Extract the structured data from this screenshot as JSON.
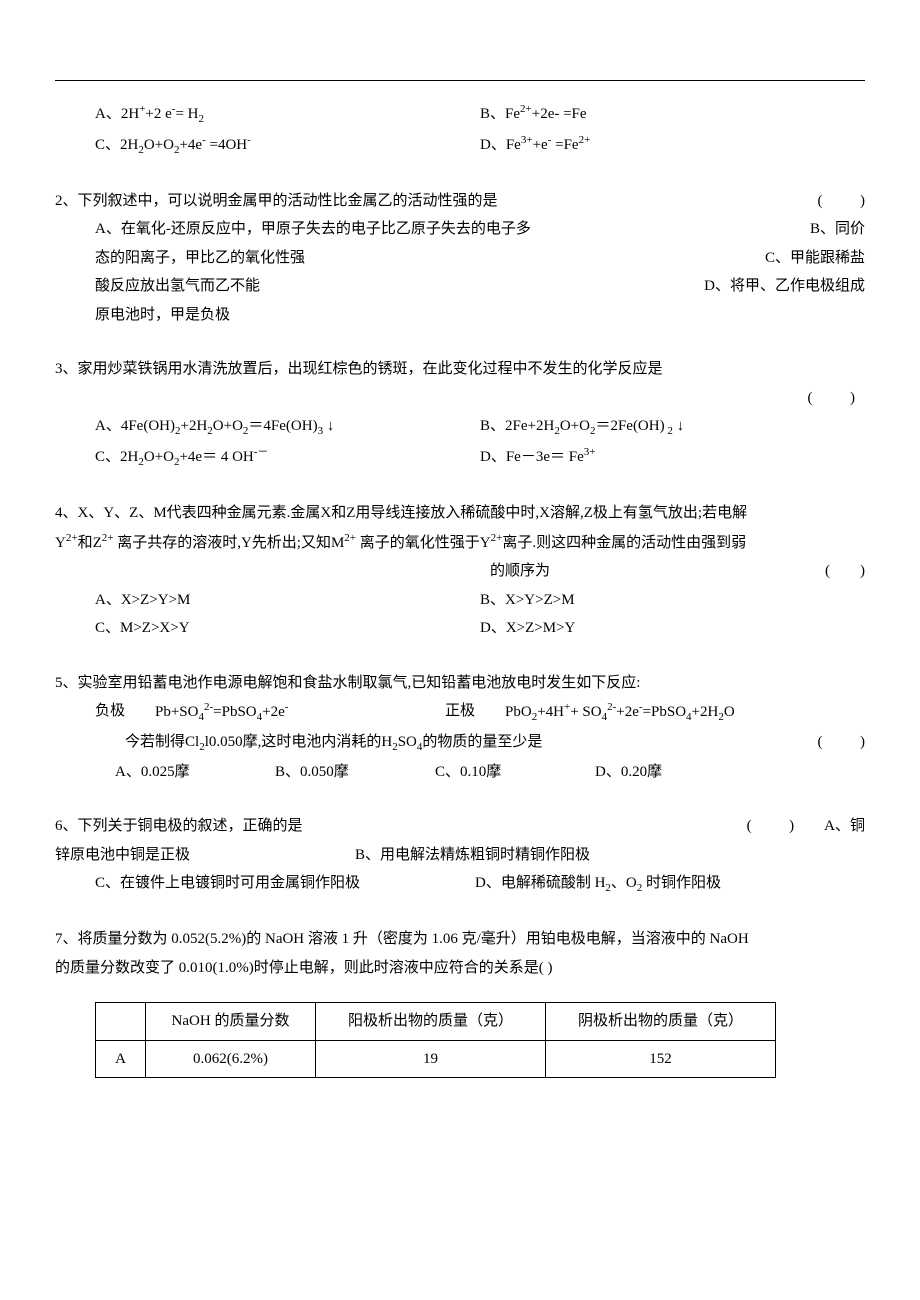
{
  "q1_options": {
    "A": "A、2H<sup>+</sup>+2 e<sup>-</sup>= H<sub>2</sub>",
    "B": "B、Fe<sup>2+</sup>+2e- =Fe",
    "C": "C、2H<sub>2</sub>O+O<sub>2</sub>+4e<sup>-</sup> =4OH<sup>-</sup>",
    "D": "D、Fe<sup>3+</sup>+e<sup>-</sup> =Fe<sup>2+</sup>"
  },
  "q2": {
    "stem": "2、下列叙述中，可以说明金属甲的活动性比金属乙的活动性强的是",
    "paren": "(          )",
    "lines": {
      "A": "A、在氧化-还原反应中，甲原子失去的电子比乙原子失去的电子多",
      "B": "B、同价",
      "B2": "态的阳离子，甲比乙的氧化性强",
      "C": "C、甲能跟稀盐",
      "C2": "酸反应放出氢气而乙不能",
      "D": "D、将甲、乙作电极组成",
      "D2": "原电池时，甲是负极"
    }
  },
  "q3": {
    "stem": "3、家用炒菜铁锅用水清洗放置后，出现红棕色的锈斑，在此变化过程中不发生的化学反应是",
    "paren": "(          )",
    "A": "A、4Fe(OH)<sub>2</sub>+2H<sub>2</sub>O+O<sub>2</sub>＝4Fe(OH)<sub>3</sub> ↓",
    "B": "B、2Fe+2H<sub>2</sub>O+O<sub>2</sub>＝2Fe(OH)<sub> 2</sub> ↓",
    "C": "C、2H<sub>2</sub>O+O<sub>2</sub>+4e＝ 4 OH<sup>-－</sup>",
    "D": "D、Fe－3e＝ Fe<sup>3+</sup>"
  },
  "q4": {
    "stem1": "4、X、Y、Z、M代表四种金属元素.金属X和Z用导线连接放入稀硫酸中时,X溶解,Z极上有氢气放出;若电解",
    "stem2": "Y<sup>2+</sup>和Z<sup>2+</sup> 离子共存的溶液时,Y先析出;又知M<sup>2+</sup> 离子的氧化性强于Y<sup>2+</sup>离子.则这四种金属的活动性由强到弱",
    "order": "的顺序为",
    "paren": "(        )",
    "A": "A、X>Z>Y>M",
    "B": "B、X>Y>Z>M",
    "C": "C、M>Z>X>Y",
    "D": "D、X>Z>M>Y"
  },
  "q5": {
    "stem": "5、实验室用铅蓄电池作电源电解饱和食盐水制取氯气,已知铅蓄电池放电时发生如下反应:",
    "neg_label": "负极",
    "neg": "Pb+SO<sub>4</sub><sup>2-</sup>=PbSO<sub>4</sub>+2e<sup>-</sup>",
    "pos_label": "正极",
    "pos": "PbO<sub>2</sub>+4H<sup>+</sup>+ SO<sub>4</sub><sup>2-</sup>+2e<sup>-</sup>=PbSO<sub>4</sub>+2H<sub>2</sub>O",
    "cond": "今若制得Cl<sub>2</sub>l0.050摩,这时电池内消耗的H<sub>2</sub>SO<sub>4</sub>的物质的量至少是",
    "paren": "(          )",
    "A": "A、0.025摩",
    "B": "B、0.050摩",
    "C": "C、0.10摩",
    "D": "D、0.20摩"
  },
  "q6": {
    "stem": "6、下列关于铜电极的叙述，正确的是",
    "paren": "(          )",
    "A_tail": "A、铜",
    "A2": "锌原电池中铜是正极",
    "B": "B、用电解法精炼粗铜时精铜作阳极",
    "C": "C、在镀件上电镀铜时可用金属铜作阳极",
    "D": "D、电解稀硫酸制 H<sub>2</sub>、O<sub>2</sub> 时铜作阳极"
  },
  "q7": {
    "stem1": "7、将质量分数为 0.052(5.2%)的 NaOH 溶液 1 升（密度为 1.06 克/毫升）用铂电极电解，当溶液中的 NaOH",
    "stem2": "的质量分数改变了 0.010(1.0%)时停止电解，则此时溶液中应符合的关系是(          )"
  },
  "table": {
    "headers": [
      "",
      "NaOH 的质量分数",
      "阳极析出物的质量（克）",
      "阴极析出物的质量（克）"
    ],
    "rowA": [
      "A",
      "0.062(6.2%)",
      "19",
      "152"
    ]
  }
}
